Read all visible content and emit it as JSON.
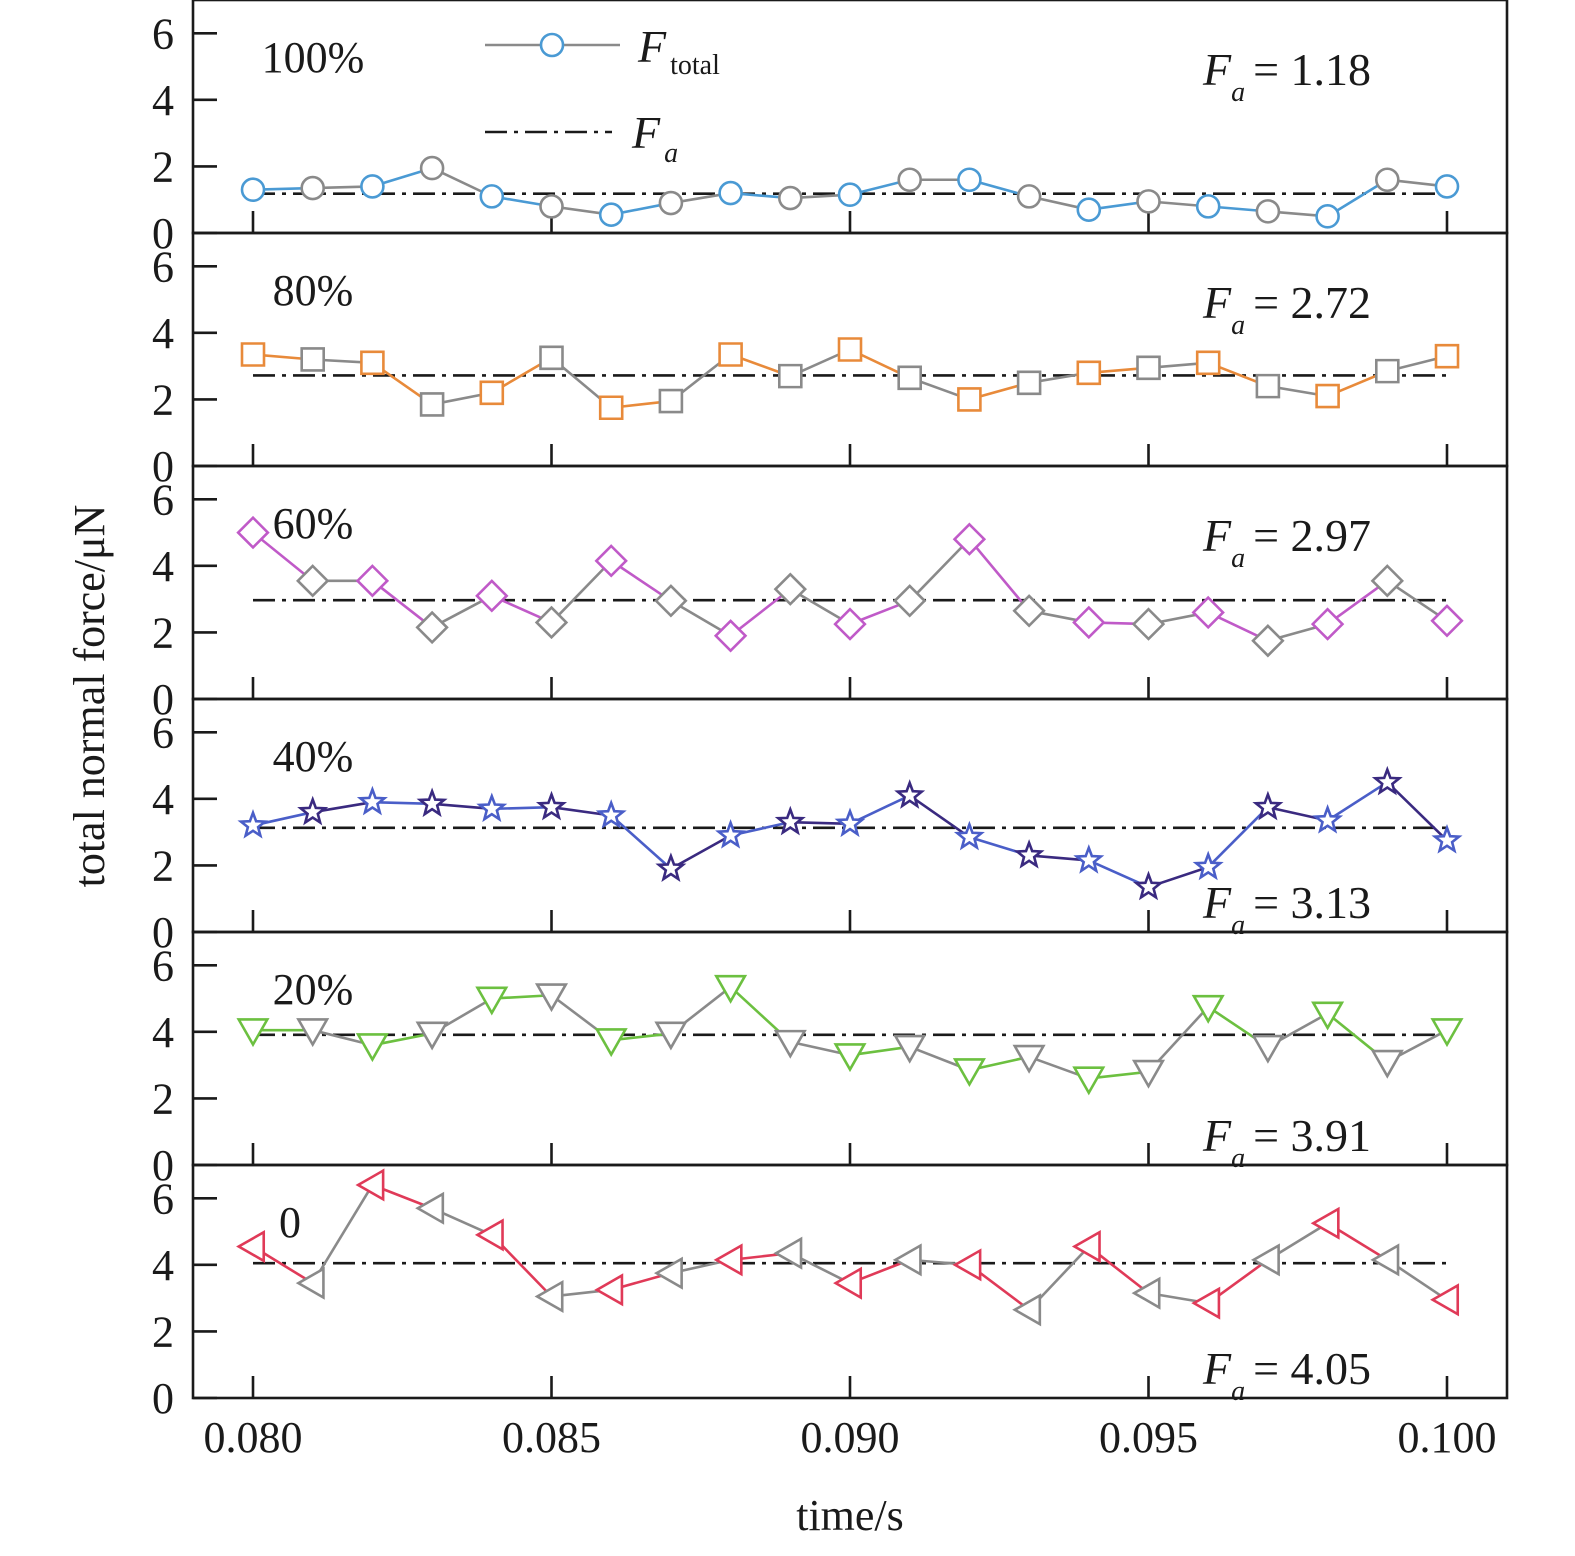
{
  "chart_data": {
    "type": "line",
    "xlabel": "time/s",
    "ylabel": "total normal force/μN",
    "xlim": [
      0.08,
      0.1
    ],
    "xticks": [
      0.08,
      0.085,
      0.09,
      0.095,
      0.1
    ],
    "xtick_labels": [
      "0.080",
      "0.085",
      "0.090",
      "0.095",
      "0.100"
    ],
    "ylim": [
      0,
      7
    ],
    "yticks": [
      0,
      2,
      4,
      6
    ],
    "ytick_labels": [
      "0",
      "2",
      "4",
      "6"
    ],
    "grid": false,
    "legend": {
      "position": "top",
      "entries": [
        {
          "main": "F",
          "sub": "total"
        },
        {
          "main": "F",
          "sub": "a"
        }
      ]
    },
    "x": [
      0.08,
      0.081,
      0.082,
      0.083,
      0.084,
      0.085,
      0.086,
      0.087,
      0.088,
      0.089,
      0.09,
      0.091,
      0.092,
      0.093,
      0.094,
      0.095,
      0.096,
      0.097,
      0.098,
      0.099,
      0.1
    ],
    "panels": [
      {
        "label": "100%",
        "marker": "circle",
        "colors": [
          "#4a9ad4",
          "#8a8a8a"
        ],
        "fa_main": "F",
        "fa_sub": "a",
        "fa_value": "= 1.18",
        "fa": 1.18,
        "fa_pos": "top",
        "values": [
          1.3,
          1.35,
          1.4,
          1.95,
          1.1,
          0.8,
          0.55,
          0.9,
          1.2,
          1.05,
          1.15,
          1.6,
          1.6,
          1.1,
          0.7,
          0.95,
          0.8,
          0.65,
          0.5,
          1.6,
          1.4
        ]
      },
      {
        "label": "80%",
        "marker": "square",
        "colors": [
          "#e88a3a",
          "#8a8a8a"
        ],
        "fa_main": "F",
        "fa_sub": "a",
        "fa_value": "= 2.72",
        "fa": 2.72,
        "fa_pos": "top",
        "values": [
          3.35,
          3.2,
          3.1,
          1.85,
          2.2,
          3.25,
          1.75,
          1.95,
          3.35,
          2.7,
          3.5,
          2.65,
          2.0,
          2.5,
          2.8,
          2.95,
          3.1,
          2.4,
          2.1,
          2.85,
          3.3
        ]
      },
      {
        "label": "60%",
        "marker": "diamond",
        "colors": [
          "#c05ac8",
          "#8a8a8a"
        ],
        "fa_main": "F",
        "fa_sub": "a",
        "fa_value": "= 2.97",
        "fa": 2.97,
        "fa_pos": "top",
        "values": [
          5.0,
          3.55,
          3.55,
          2.15,
          3.1,
          2.3,
          4.15,
          2.95,
          1.9,
          3.3,
          2.25,
          2.95,
          4.8,
          2.65,
          2.3,
          2.25,
          2.6,
          1.75,
          2.25,
          3.55,
          2.35
        ]
      },
      {
        "label": "40%",
        "marker": "star",
        "colors": [
          "#4a5ec8",
          "#3a2a80"
        ],
        "fa_main": "F",
        "fa_sub": "a",
        "fa_value": "= 3.13",
        "fa": 3.13,
        "fa_pos": "bottom",
        "values": [
          3.2,
          3.6,
          3.9,
          3.85,
          3.7,
          3.75,
          3.5,
          1.9,
          2.9,
          3.3,
          3.25,
          4.1,
          2.85,
          2.3,
          2.15,
          1.35,
          1.95,
          3.75,
          3.35,
          4.5,
          2.75
        ]
      },
      {
        "label": "20%",
        "marker": "triangle-down",
        "colors": [
          "#6cc040",
          "#8a8a8a"
        ],
        "fa_main": "F",
        "fa_sub": "a",
        "fa_value": "= 3.91",
        "fa": 3.91,
        "fa_pos": "bottom",
        "values": [
          4.05,
          4.05,
          3.6,
          3.95,
          5.0,
          5.1,
          3.75,
          3.95,
          5.35,
          3.7,
          3.3,
          3.55,
          2.85,
          3.25,
          2.6,
          2.8,
          4.75,
          3.55,
          4.55,
          3.1,
          4.05
        ]
      },
      {
        "label": "0",
        "marker": "triangle-left",
        "colors": [
          "#e03a58",
          "#8a8a8a"
        ],
        "fa_main": "F",
        "fa_sub": "a",
        "fa_value": "= 4.05",
        "fa": 4.05,
        "fa_pos": "bottom",
        "values": [
          4.55,
          3.45,
          6.4,
          5.7,
          4.9,
          3.05,
          3.25,
          3.75,
          4.15,
          4.35,
          3.45,
          4.15,
          4.0,
          2.65,
          4.55,
          3.15,
          2.85,
          4.15,
          5.25,
          4.15,
          2.95
        ]
      }
    ]
  }
}
